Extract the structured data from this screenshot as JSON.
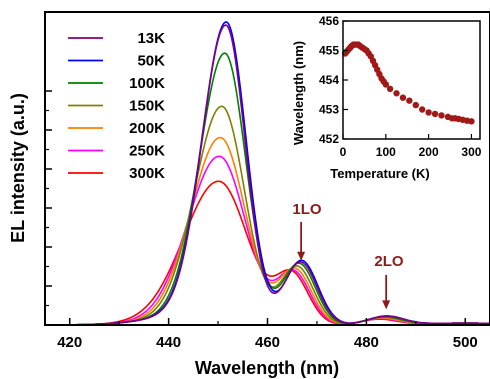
{
  "chart_data": [
    {
      "type": "line",
      "xlabel": "Wavelength (nm)",
      "ylabel": "EL intensity (a.u.)",
      "xlim": [
        415,
        505
      ],
      "ylim": [
        0,
        1.03
      ],
      "xticks": [
        420,
        440,
        460,
        480,
        500
      ],
      "xtick_labels": [
        "420",
        "440",
        "460",
        "480",
        "500"
      ],
      "y_tick_labels_shown": false,
      "legend_position": "top-left",
      "annotations": [
        {
          "text": "1LO",
          "x": 466.8,
          "y": 0.205,
          "color": "#8b1a1a",
          "arrow": true
        },
        {
          "text": "2LO",
          "x": 484.0,
          "y": 0.045,
          "color": "#8b1a1a",
          "arrow": true
        }
      ],
      "series": [
        {
          "name": "13K",
          "color": "#800080",
          "peak_x": 451.6,
          "peak": 0.96,
          "width_l": 4.8,
          "width_r": 3.9,
          "lo1_x": 466.7,
          "lo1": 0.205,
          "lo2_x": 484.0,
          "lo2": 0.028
        },
        {
          "name": "50K",
          "color": "#0000ff",
          "peak_x": 451.7,
          "peak": 0.97,
          "width_l": 4.9,
          "width_r": 4.0,
          "lo1_x": 466.9,
          "lo1": 0.21,
          "lo2_x": 484.0,
          "lo2": 0.028
        },
        {
          "name": "100K",
          "color": "#008000",
          "peak_x": 451.4,
          "peak": 0.87,
          "width_l": 5.1,
          "width_r": 4.2,
          "lo1_x": 466.4,
          "lo1": 0.2,
          "lo2_x": 483.6,
          "lo2": 0.026
        },
        {
          "name": "150K",
          "color": "#808000",
          "peak_x": 450.8,
          "peak": 0.7,
          "width_l": 5.5,
          "width_r": 4.6,
          "lo1_x": 466.0,
          "lo1": 0.19,
          "lo2_x": 483.3,
          "lo2": 0.024
        },
        {
          "name": "200K",
          "color": "#ff8000",
          "peak_x": 450.5,
          "peak": 0.6,
          "width_l": 5.9,
          "width_r": 5.0,
          "lo1_x": 465.6,
          "lo1": 0.18,
          "lo2_x": 483.0,
          "lo2": 0.022
        },
        {
          "name": "250K",
          "color": "#ff00ff",
          "peak_x": 450.3,
          "peak": 0.54,
          "width_l": 6.3,
          "width_r": 5.3,
          "lo1_x": 465.3,
          "lo1": 0.17,
          "lo2_x": 482.8,
          "lo2": 0.02
        },
        {
          "name": "300K",
          "color": "#ff0000",
          "peak_x": 450.2,
          "peak": 0.46,
          "width_l": 7.0,
          "width_r": 5.8,
          "lo1_x": 465.0,
          "lo1": 0.16,
          "lo2_x": 482.5,
          "lo2": 0.018
        }
      ]
    },
    {
      "type": "scatter",
      "xlabel": "Temperature (K)",
      "ylabel": "Wavelength (nm)",
      "xlim": [
        0,
        320
      ],
      "ylim": [
        452,
        456
      ],
      "xticks": [
        0,
        100,
        200,
        300
      ],
      "xtick_labels": [
        "0",
        "100",
        "200",
        "300"
      ],
      "yticks": [
        452,
        453,
        454,
        455,
        456
      ],
      "ytick_labels": [
        "452",
        "453",
        "454",
        "455",
        "456"
      ],
      "marker_color": "#a01818",
      "points": [
        [
          5,
          454.9
        ],
        [
          8,
          454.95
        ],
        [
          11,
          455.0
        ],
        [
          14,
          455.05
        ],
        [
          17,
          455.1
        ],
        [
          20,
          455.15
        ],
        [
          24,
          455.2
        ],
        [
          28,
          455.2
        ],
        [
          32,
          455.2
        ],
        [
          36,
          455.2
        ],
        [
          40,
          455.15
        ],
        [
          45,
          455.1
        ],
        [
          50,
          455.05
        ],
        [
          55,
          455.0
        ],
        [
          60,
          454.9
        ],
        [
          65,
          454.8
        ],
        [
          70,
          454.65
        ],
        [
          75,
          454.5
        ],
        [
          80,
          454.35
        ],
        [
          85,
          454.2
        ],
        [
          90,
          454.05
        ],
        [
          95,
          453.95
        ],
        [
          100,
          453.85
        ],
        [
          110,
          453.7
        ],
        [
          125,
          453.55
        ],
        [
          140,
          453.4
        ],
        [
          155,
          453.3
        ],
        [
          170,
          453.15
        ],
        [
          185,
          453.0
        ],
        [
          200,
          452.9
        ],
        [
          215,
          452.85
        ],
        [
          230,
          452.8
        ],
        [
          245,
          452.75
        ],
        [
          255,
          452.7
        ],
        [
          262,
          452.7
        ],
        [
          270,
          452.68
        ],
        [
          280,
          452.65
        ],
        [
          290,
          452.62
        ],
        [
          300,
          452.6
        ]
      ]
    }
  ]
}
